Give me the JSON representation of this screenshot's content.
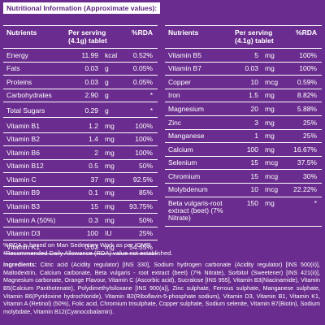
{
  "title": "Nutritional Information (Approximate values):",
  "left_table": {
    "headers": {
      "nutrients": "Nutrients",
      "per_serving": "Per serving (4.1g) tablet",
      "rda": "%RDA"
    },
    "rows": [
      {
        "name": "Energy",
        "amount": "11.99",
        "unit": "kcal",
        "rda": "0.52%"
      },
      {
        "name": "Fats",
        "amount": "0.03",
        "unit": "g",
        "rda": "0.05%"
      },
      {
        "name": "Proteins",
        "amount": "0.03",
        "unit": "g",
        "rda": "0.05%"
      },
      {
        "name": "Carbohydrates",
        "amount": "2.90",
        "unit": "g",
        "rda": "*"
      },
      {
        "name": "Total Sugars",
        "amount": "0.29",
        "unit": "g",
        "rda": "*"
      },
      {
        "name": "Vitamin B1",
        "amount": "1.2",
        "unit": "mg",
        "rda": "100%"
      },
      {
        "name": "Vitamin B2",
        "amount": "1.4",
        "unit": "mg",
        "rda": "100%"
      },
      {
        "name": "Vitamin B6",
        "amount": "2",
        "unit": "mg",
        "rda": "100%"
      },
      {
        "name": "Vitamin B12",
        "amount": "0.5",
        "unit": "mg",
        "rda": "50%"
      },
      {
        "name": "Vitamin C",
        "amount": "37",
        "unit": "mg",
        "rda": "92.5%"
      },
      {
        "name": "Vitamin B9",
        "amount": "0.1",
        "unit": "mg",
        "rda": "85%"
      },
      {
        "name": "Vitamin B3",
        "amount": "15",
        "unit": "mg",
        "rda": "93.75%"
      },
      {
        "name": "Vitamin A (50%)",
        "amount": "0.3",
        "unit": "mg",
        "rda": "50%"
      },
      {
        "name": "Vitamin D3",
        "amount": "100",
        "unit": "IU",
        "rda": "25%"
      },
      {
        "name": "Vitamin K1",
        "amount": "0.03",
        "unit": "mg",
        "rda": "54.55%"
      }
    ]
  },
  "right_table": {
    "headers": {
      "nutrients": "Nutrients",
      "per_serving": "Per serving (4.1g) tablet",
      "rda": "%RDA"
    },
    "rows": [
      {
        "name": "Vitamin B5",
        "amount": "5",
        "unit": "mg",
        "rda": "100%"
      },
      {
        "name": "Vitamin B7",
        "amount": "0.03",
        "unit": "mg",
        "rda": "100%"
      },
      {
        "name": "Copper",
        "amount": "10",
        "unit": "mcg",
        "rda": "0.59%"
      },
      {
        "name": "Iron",
        "amount": "1.5",
        "unit": "mg",
        "rda": "8.82%"
      },
      {
        "name": "Magnesium",
        "amount": "20",
        "unit": "mg",
        "rda": "5.88%"
      },
      {
        "name": "Zinc",
        "amount": "3",
        "unit": "mg",
        "rda": "25%"
      },
      {
        "name": "Manganese",
        "amount": "1",
        "unit": "mg",
        "rda": "25%"
      },
      {
        "name": "Calcium",
        "amount": "100",
        "unit": "mg",
        "rda": "16.67%"
      },
      {
        "name": "Selenium",
        "amount": "15",
        "unit": "mcg",
        "rda": "37.5%"
      },
      {
        "name": "Chromium",
        "amount": "15",
        "unit": "mcg",
        "rda": "30%"
      },
      {
        "name": "Molybdenum",
        "amount": "10",
        "unit": "mcg",
        "rda": "22.22%"
      },
      {
        "name": "Beta vulgaris-root extract (beet) (7% Nitrate)",
        "amount": "150",
        "unit": "mg",
        "rda": "*"
      }
    ]
  },
  "notes": {
    "line1": "%RDA is based on Man Sedentary Work as per ICMR.",
    "line2": "*Recommended Daily Allowance (RDA) value not established."
  },
  "ingredients": {
    "label": "Ingredients:",
    "text": "Citric acid (Acidity regulator) [INS 330], Sodium hydrogen carbonate (Acidity regulator) [INS 500(ii)], Maltodextrin, Calcium carbonate, Beta vulgaris - root extract (beet) (7% Nitrate), Sorbitol (Sweetener) [INS 421(ii)], Magnesium carbonate, Orange Flavour, Vitamin C (Ascorbic acid), Sucralose [INS 955], Vitamin B3(Niacinamide), Vitamin B5(Calcium Panthotenate), Polydimethylsiloxane [INS 900(a)], Zinc sulphate, Ferrous sulphate, Manganese sulphate, Vitamin B6(Pyridoxine hydrochloride), Vitamin B2(Riboflavin-5-phosphate sodium), Vitamin D3, Vitamin B1, Vitamin K1, Vitamin A (Retinol) (50%), Folic acid, Chromium trisulphate, Copper sulphate, Sodium selenite, Vitamin B7(Biotin), Sodium molybdate, Vitamin B12(Cyanocobalamin)."
  },
  "colors": {
    "background": "#6a2c8e",
    "title_text": "#5a1f7e",
    "text": "#ffffff"
  }
}
